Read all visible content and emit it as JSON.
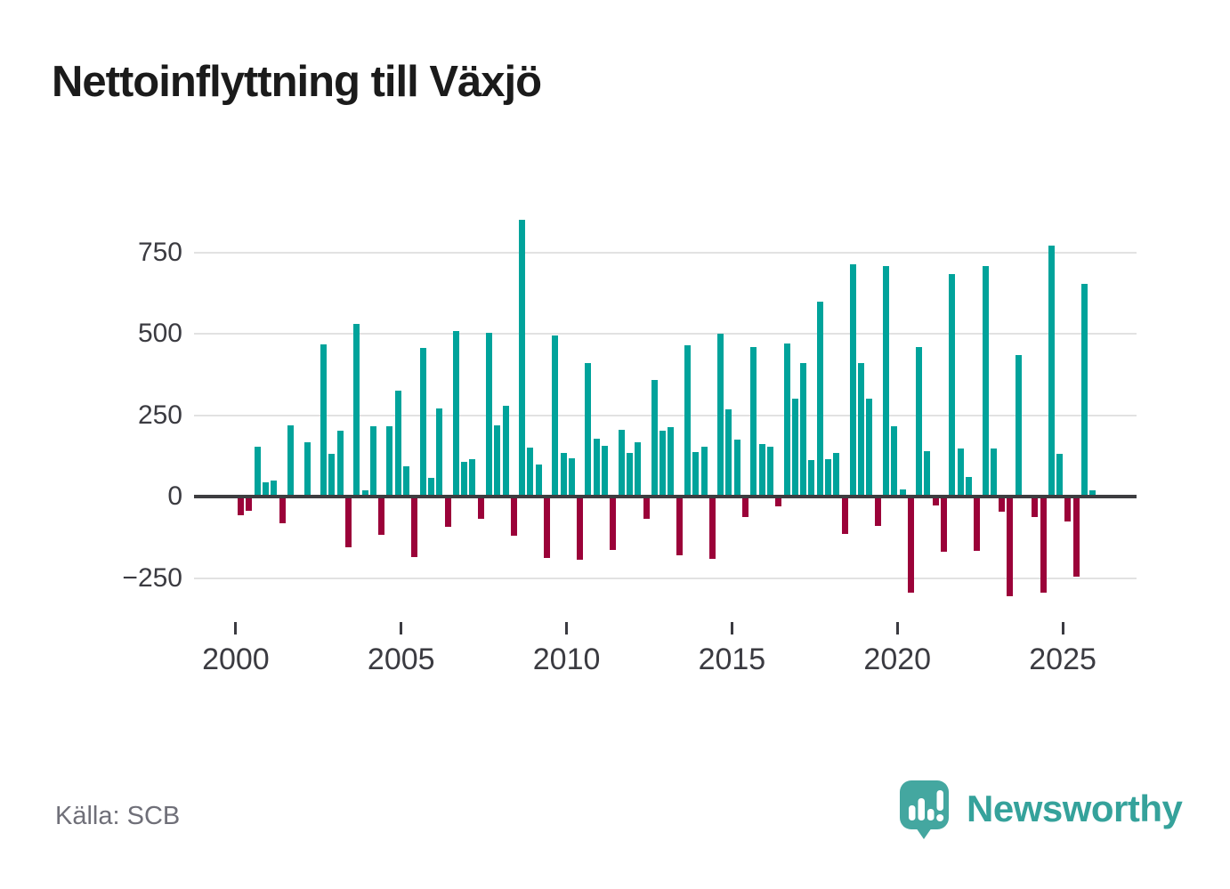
{
  "title": "Nettoinflyttning till Växjö",
  "source_label": "Källa: SCB",
  "branding": {
    "name": "Newsworthy"
  },
  "chart_data": {
    "type": "bar",
    "title": "Nettoinflyttning till Växjö",
    "xlabel": "",
    "ylabel": "",
    "grid": true,
    "ylim": [
      -330,
      900
    ],
    "y_ticks": [
      750,
      500,
      250,
      0,
      -250
    ],
    "x_tick_labels": [
      "2000",
      "2005",
      "2010",
      "2015",
      "2020",
      "2025"
    ],
    "colors": {
      "positive": "#00a39b",
      "negative": "#9b0239"
    },
    "x": [
      "2000 Q1",
      "2000 Q2",
      "2000 Q3",
      "2000 Q4",
      "2001 Q1",
      "2001 Q2",
      "2001 Q3",
      "2001 Q4",
      "2002 Q1",
      "2002 Q2",
      "2002 Q3",
      "2002 Q4",
      "2003 Q1",
      "2003 Q2",
      "2003 Q3",
      "2003 Q4",
      "2004 Q1",
      "2004 Q2",
      "2004 Q3",
      "2004 Q4",
      "2005 Q1",
      "2005 Q2",
      "2005 Q3",
      "2005 Q4",
      "2006 Q1",
      "2006 Q2",
      "2006 Q3",
      "2006 Q4",
      "2007 Q1",
      "2007 Q2",
      "2007 Q3",
      "2007 Q4",
      "2008 Q1",
      "2008 Q2",
      "2008 Q3",
      "2008 Q4",
      "2009 Q1",
      "2009 Q2",
      "2009 Q3",
      "2009 Q4",
      "2010 Q1",
      "2010 Q2",
      "2010 Q3",
      "2010 Q4",
      "2011 Q1",
      "2011 Q2",
      "2011 Q3",
      "2011 Q4",
      "2012 Q1",
      "2012 Q2",
      "2012 Q3",
      "2012 Q4",
      "2013 Q1",
      "2013 Q2",
      "2013 Q3",
      "2013 Q4",
      "2014 Q1",
      "2014 Q2",
      "2014 Q3",
      "2014 Q4",
      "2015 Q1",
      "2015 Q2",
      "2015 Q3",
      "2015 Q4",
      "2016 Q1",
      "2016 Q2",
      "2016 Q3",
      "2016 Q4",
      "2017 Q1",
      "2017 Q2",
      "2017 Q3",
      "2017 Q4",
      "2018 Q1",
      "2018 Q2",
      "2018 Q3",
      "2018 Q4",
      "2019 Q1",
      "2019 Q2",
      "2019 Q3",
      "2019 Q4",
      "2020 Q1",
      "2020 Q2",
      "2020 Q3",
      "2020 Q4",
      "2021 Q1",
      "2021 Q2",
      "2021 Q3",
      "2021 Q4",
      "2022 Q1",
      "2022 Q2",
      "2022 Q3",
      "2022 Q4",
      "2023 Q1",
      "2023 Q2",
      "2023 Q3",
      "2023 Q4",
      "2024 Q1",
      "2024 Q2",
      "2024 Q3",
      "2024 Q4",
      "2025 Q1",
      "2025 Q2",
      "2025 Q3",
      "2025 Q4"
    ],
    "values": [
      -53,
      -39,
      152,
      44,
      48,
      -77,
      219,
      0,
      167,
      0,
      466,
      130,
      201,
      -150,
      530,
      19,
      216,
      -112,
      217,
      325,
      94,
      -180,
      457,
      57,
      271,
      -88,
      508,
      106,
      116,
      -63,
      502,
      219,
      280,
      -116,
      850,
      150,
      97,
      -184,
      494,
      134,
      117,
      -189,
      409,
      178,
      156,
      -159,
      205,
      134,
      168,
      -62,
      357,
      202,
      212,
      -176,
      464,
      137,
      153,
      -187,
      500,
      267,
      176,
      -57,
      460,
      160,
      154,
      -25,
      470,
      300,
      411,
      112,
      597,
      116,
      134,
      -110,
      713,
      409,
      300,
      -84,
      708,
      216,
      21,
      -290,
      460,
      138,
      -23,
      -165,
      683,
      148,
      59,
      -162,
      708,
      148,
      -41,
      -300,
      434,
      0,
      -57,
      -290,
      770,
      132,
      -71,
      -240,
      653,
      20
    ]
  }
}
